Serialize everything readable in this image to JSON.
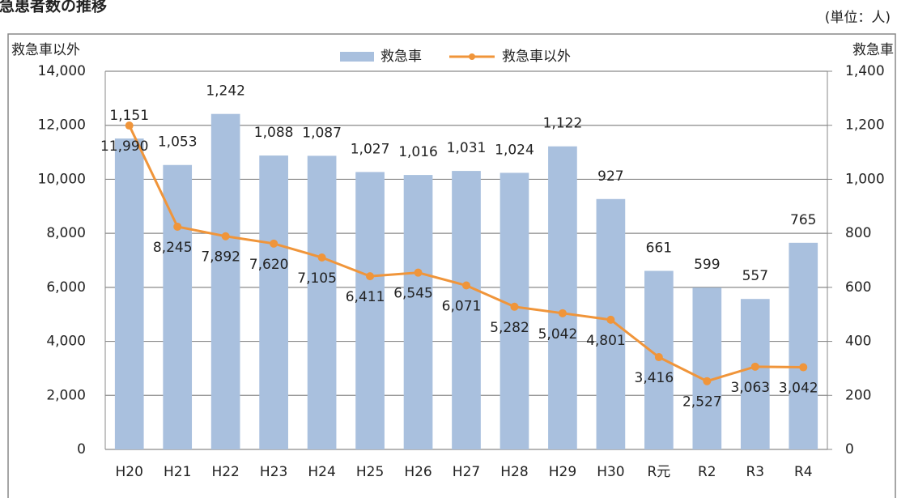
{
  "chart_data": {
    "type": "bar_line",
    "title": "救急患者数の推移",
    "unit_note": "(単位：人)",
    "ylabel": "救急車以外",
    "y2label": "救急車",
    "categories": [
      "H20",
      "H21",
      "H22",
      "H23",
      "H24",
      "H25",
      "H26",
      "H27",
      "H28",
      "H29",
      "H30",
      "R元",
      "R2",
      "R3",
      "R4"
    ],
    "series": [
      {
        "name": "救急車",
        "kind": "bar",
        "axis": "y2",
        "color": "#a9c0de",
        "values": [
          1151,
          1053,
          1242,
          1088,
          1087,
          1027,
          1016,
          1031,
          1024,
          1122,
          927,
          661,
          599,
          557,
          765
        ],
        "value_labels": [
          "1,151",
          "1,053",
          "1,242",
          "1,088",
          "1,087",
          "1,027",
          "1,016",
          "1,031",
          "1,024",
          "1,122",
          "927",
          "661",
          "599",
          "557",
          "765"
        ]
      },
      {
        "name": "救急車以外",
        "kind": "line",
        "color": "#f0953a",
        "values": [
          11990,
          8245,
          7892,
          7620,
          7105,
          6411,
          6545,
          6071,
          5282,
          5042,
          4801,
          3416,
          2527,
          3063,
          3042
        ],
        "value_labels": [
          "11,990",
          "8,245",
          "7,892",
          "7,620",
          "7,105",
          "6,411",
          "6,545",
          "6,071",
          "5,282",
          "5,042",
          "4,801",
          "3,416",
          "2,527",
          "3,063",
          "3,042"
        ]
      }
    ],
    "ylim": [
      0,
      14000
    ],
    "yticks": [
      0,
      {
        "value": 2000,
        "label": "2,000"
      },
      {
        "value": 4000,
        "label": "4,000"
      },
      {
        "value": 6000,
        "label": "6,000"
      },
      {
        "value": 8000,
        "label": "8,000"
      },
      {
        "value": 10000,
        "label": "10,000"
      },
      {
        "value": 12000,
        "label": "12,000"
      },
      {
        "value": 14000,
        "label": "14,000"
      }
    ],
    "y2lim": [
      0,
      1400
    ],
    "y2ticks": [
      0,
      200,
      400,
      600,
      800,
      {
        "value": 1000,
        "label": "1,000"
      },
      {
        "value": 1200,
        "label": "1,200"
      },
      {
        "value": 1400,
        "label": "1,400"
      }
    ],
    "grid": true,
    "legend": "top"
  }
}
